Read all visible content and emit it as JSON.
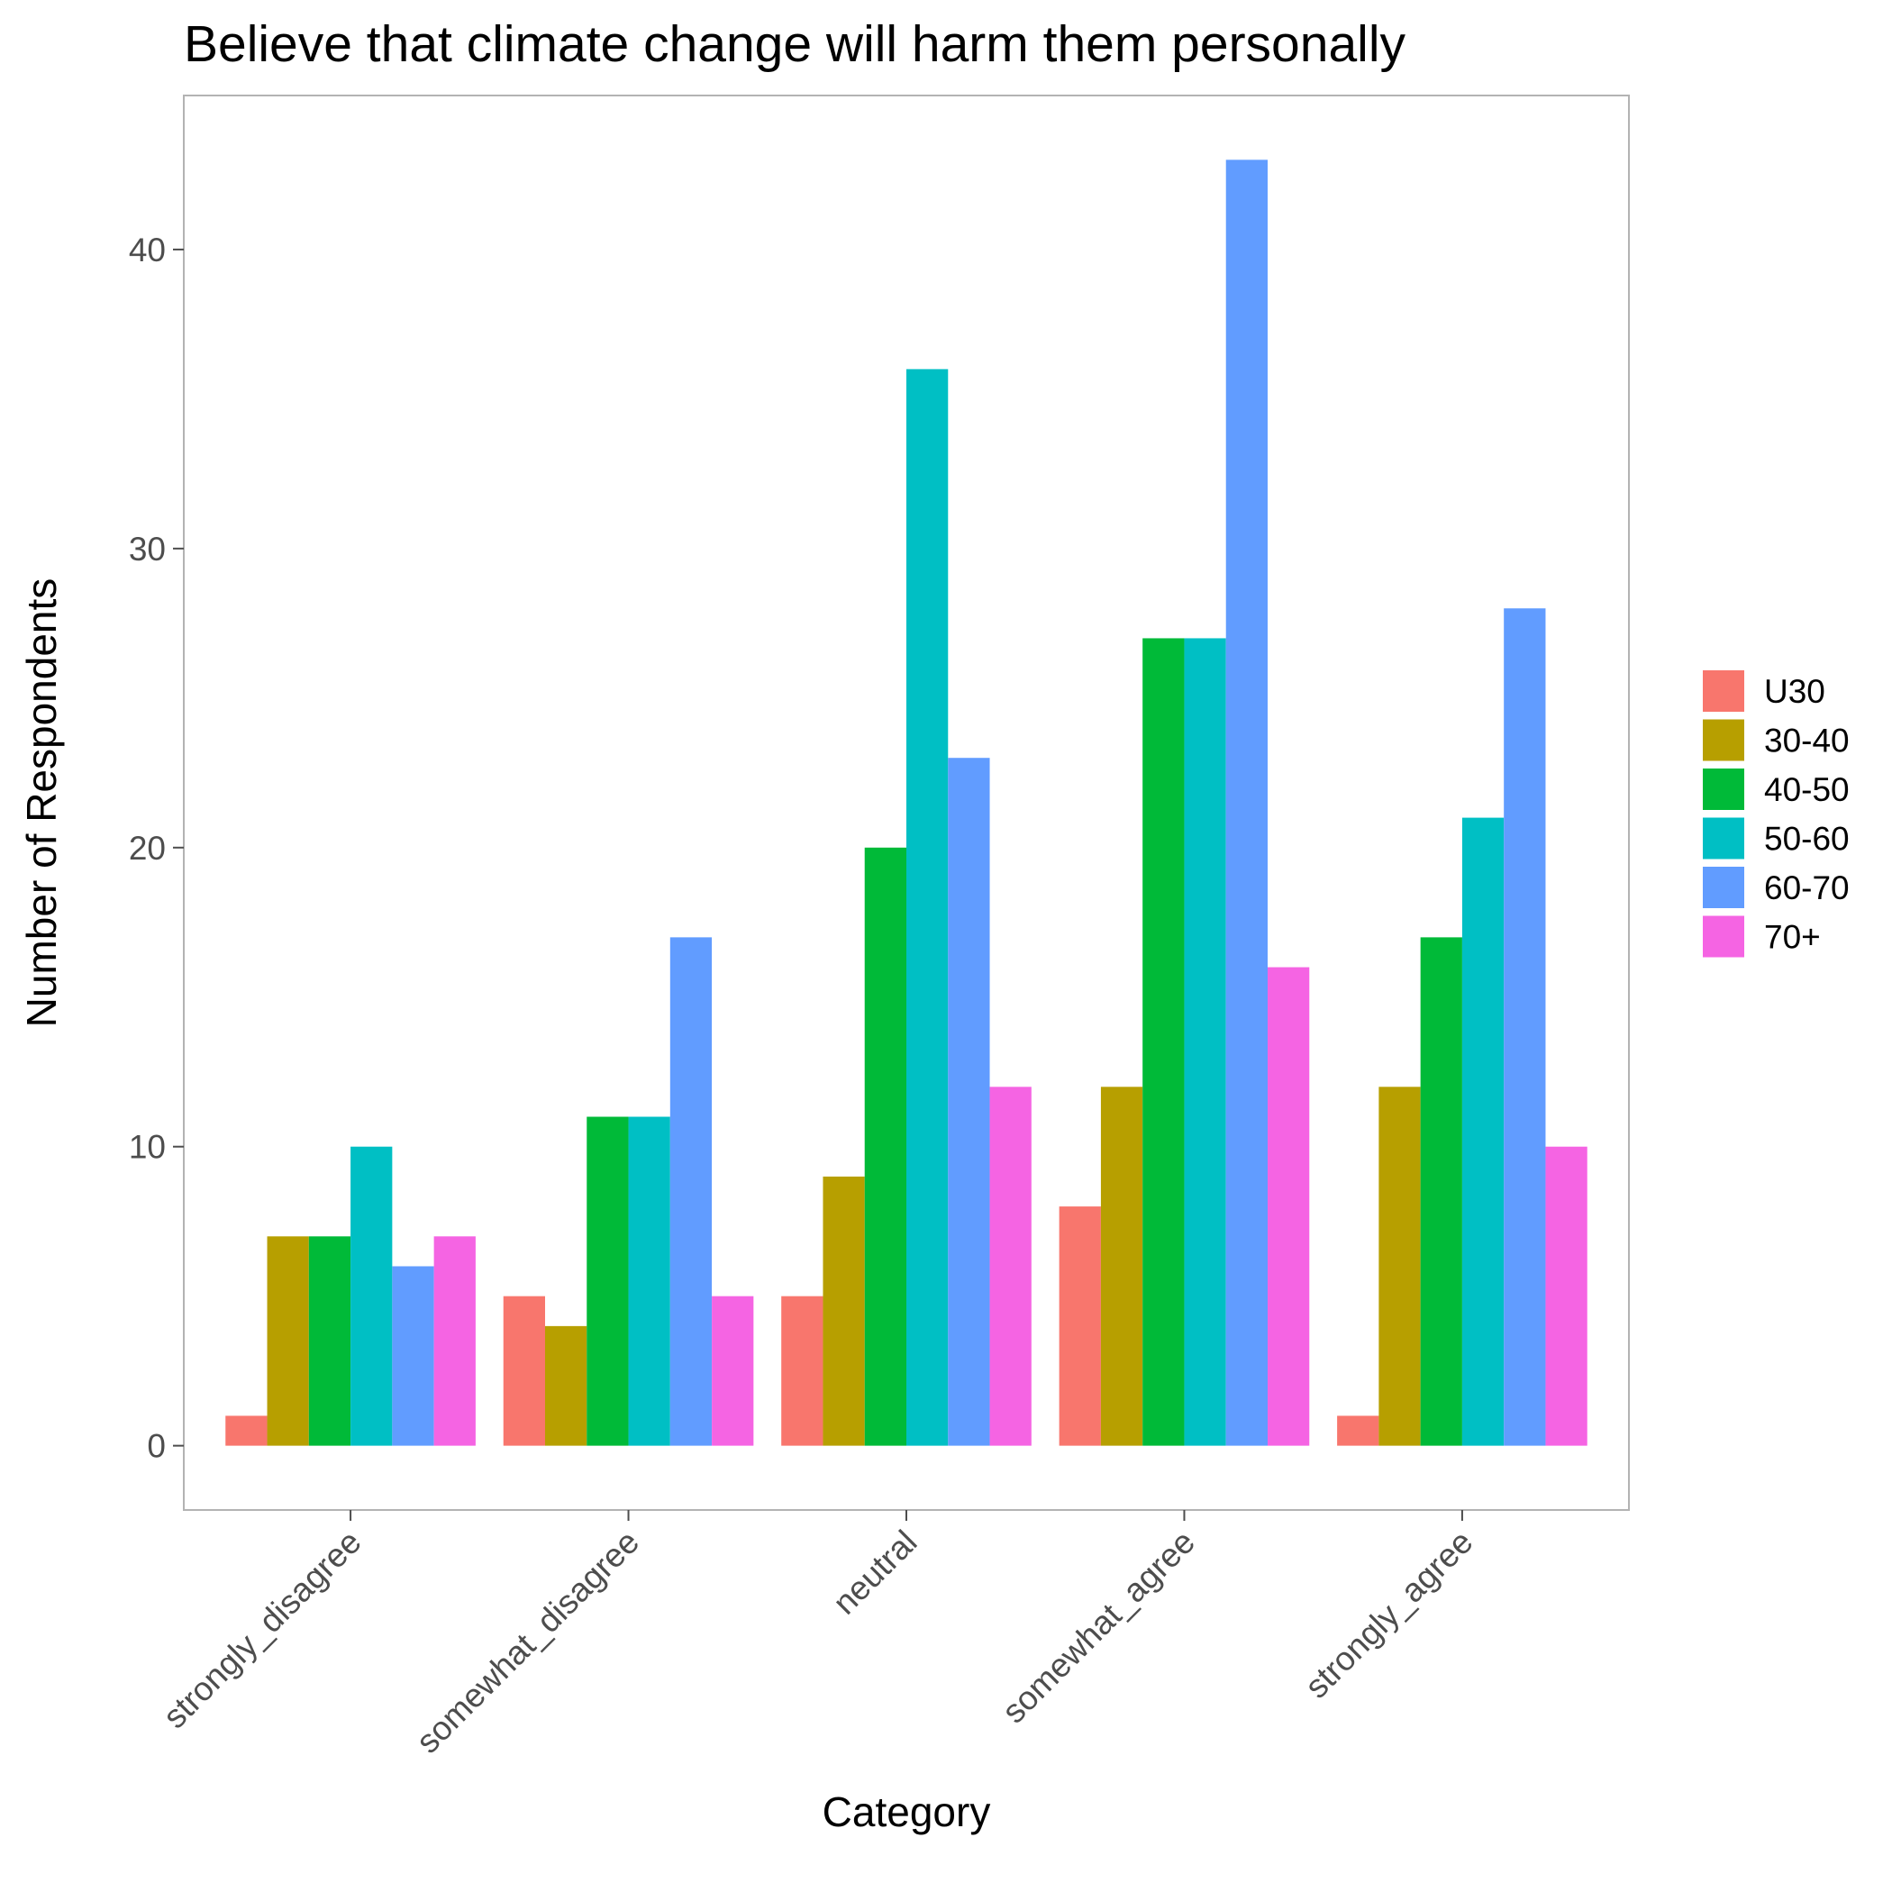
{
  "chart_data": {
    "type": "bar",
    "title": "Believe that climate change will harm them personally",
    "xlabel": "Category",
    "ylabel": "Number of Respondents",
    "categories": [
      "strongly_disagree",
      "somewhat_disagree",
      "neutral",
      "somewhat_agree",
      "strongly_agree"
    ],
    "series": [
      {
        "name": "U30",
        "color": "#F8766D",
        "values": [
          1,
          5,
          5,
          8,
          1
        ]
      },
      {
        "name": "30-40",
        "color": "#B79F00",
        "values": [
          7,
          4,
          9,
          12,
          12
        ]
      },
      {
        "name": "40-50",
        "color": "#00BA38",
        "values": [
          7,
          11,
          20,
          27,
          17
        ]
      },
      {
        "name": "50-60",
        "color": "#00BFC4",
        "values": [
          10,
          11,
          36,
          27,
          21
        ]
      },
      {
        "name": "60-70",
        "color": "#619CFF",
        "values": [
          6,
          17,
          23,
          43,
          28
        ]
      },
      {
        "name": "70+",
        "color": "#F564E3",
        "values": [
          7,
          5,
          12,
          16,
          10
        ]
      }
    ],
    "ylim": [
      -2.15,
      45.15
    ],
    "yticks": [
      0,
      10,
      20,
      30,
      40
    ],
    "grid": false,
    "legend_position": "right",
    "panel_border_color": "#B3B3B3",
    "tick_color": "#4d4d4d"
  }
}
